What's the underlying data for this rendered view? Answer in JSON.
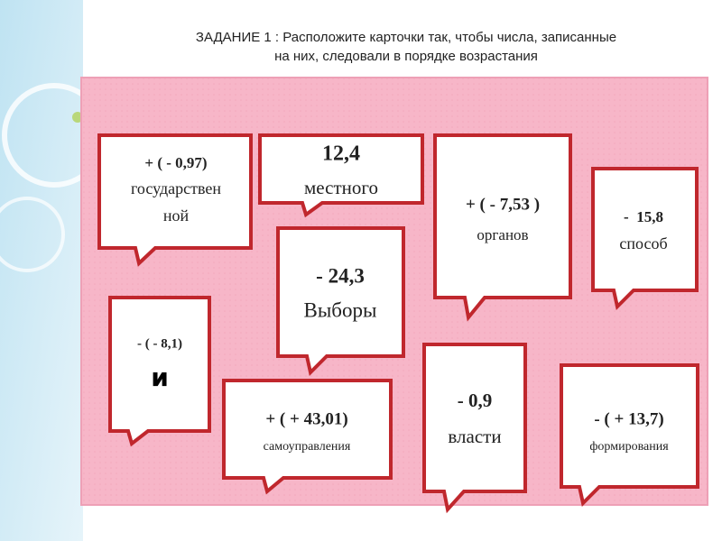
{
  "header": {
    "title_lines": [
      "ЗАДАНИЕ 1 : Расположите карточки так, чтобы числа, записанные",
      "на них, следовали в порядке возрастания"
    ]
  },
  "cards": [
    {
      "number": "+ ( - 0,97)",
      "words": [
        "государствен",
        "ной"
      ]
    },
    {
      "number": "12,4",
      "words": [
        "местного"
      ]
    },
    {
      "number": "+ ( - 7,53 )",
      "words": [
        "органов"
      ]
    },
    {
      "number": "-  15,8",
      "words": [
        "способ"
      ]
    },
    {
      "number": "- 24,3",
      "words": [
        "Выборы"
      ]
    },
    {
      "number": "- ( - 8,1)",
      "words": [
        "и"
      ]
    },
    {
      "number": "+ ( + 43,01)",
      "words": [
        "самоуправления"
      ]
    },
    {
      "number": "- 0,9",
      "words": [
        "власти"
      ]
    },
    {
      "number": "- ( + 13,7)",
      "words": [
        "формирования"
      ]
    }
  ]
}
